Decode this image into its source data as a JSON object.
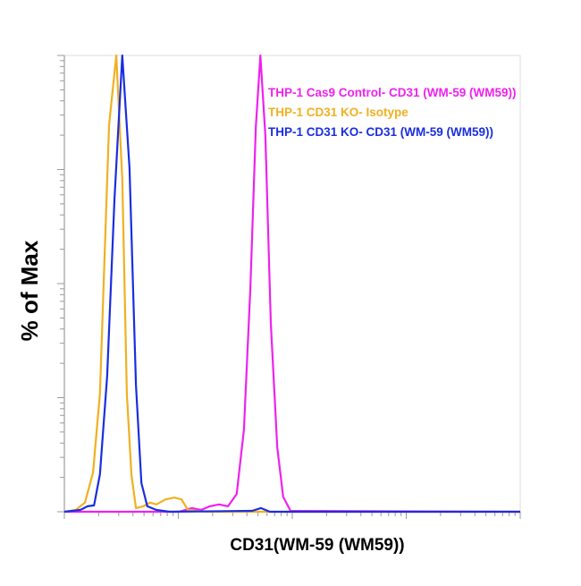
{
  "chart_data": {
    "type": "line",
    "xlabel": "CD31(WM-59 (WM59))",
    "ylabel": "% of Max",
    "xlim": [
      0,
      100
    ],
    "ylim": [
      0,
      100
    ],
    "series": [
      {
        "name": "THP-1 Cas9 Control- CD31 (WM-59 (WM59))",
        "color": "#ee22ee",
        "x": [
          0,
          25.1,
          28.0,
          30.0,
          31.9,
          33.9,
          35.9,
          37.8,
          39.4,
          40.8,
          42.0,
          43.0,
          44.1,
          45.3,
          46.7,
          48.0,
          49.6,
          100
        ],
        "values": [
          0,
          0,
          0.8,
          0.4,
          1.2,
          1.6,
          1.2,
          3.9,
          18,
          49,
          84.3,
          100,
          82.4,
          41.2,
          14.1,
          3.3,
          0.2,
          0
        ]
      },
      {
        "name": "THP-1 CD31 KO- Isotype",
        "color": "#f0b020",
        "x": [
          0,
          2.5,
          4.5,
          6.3,
          7.8,
          9.8,
          11.4,
          12.7,
          13.7,
          14.7,
          15.7,
          17.3,
          18.8,
          20.2,
          22.2,
          24.1,
          25.7,
          27.1,
          31.0,
          100
        ],
        "values": [
          0,
          0.4,
          2,
          8.6,
          25.9,
          84.7,
          100,
          72.9,
          25.9,
          8.2,
          0.8,
          1.2,
          2,
          1.6,
          2.7,
          3.1,
          2.7,
          0.4,
          0,
          0
        ]
      },
      {
        "name": "THP-1 CD31 KO- CD31 (WM-59 (WM59))",
        "color": "#1a2ee0",
        "x": [
          0,
          3.5,
          5.1,
          6.5,
          7.8,
          9.4,
          11.0,
          12.7,
          14.3,
          15.7,
          16.9,
          18.2,
          20.2,
          23.1,
          41.2,
          43.1,
          45.1,
          100
        ],
        "values": [
          0,
          0.4,
          1.2,
          1.4,
          8.2,
          29.8,
          68.6,
          100,
          75.3,
          27.8,
          6.3,
          1.2,
          0.4,
          0,
          0.2,
          0.8,
          0,
          0
        ]
      }
    ]
  }
}
